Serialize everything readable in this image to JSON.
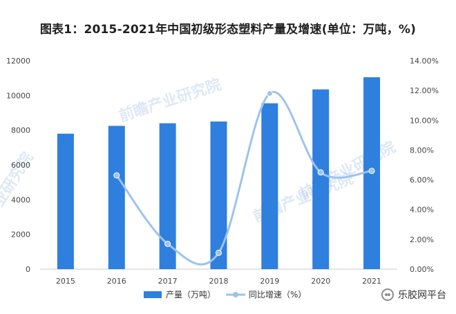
{
  "chart": {
    "title": "图表1：2015-2021年中国初级形态塑料产量及增速(单位：万吨，%)",
    "watermark_text": "前瞻产业研究院",
    "watermark_left_text": "产业研究院",
    "watermark_right_text": "前瞻产业研究院"
  },
  "source": {
    "badge_text": "乐胶网平台"
  },
  "chart_data": {
    "type": "bar",
    "categories": [
      "2015",
      "2016",
      "2017",
      "2018",
      "2019",
      "2020",
      "2021"
    ],
    "series": [
      {
        "name": "产量（万吨）",
        "type": "bar",
        "axis": "left",
        "values": [
          7800,
          8250,
          8400,
          8500,
          9550,
          10350,
          11050
        ],
        "color": "#2e7fde"
      },
      {
        "name": "同比增速（%）",
        "type": "line",
        "axis": "right",
        "values": [
          null,
          6.3,
          1.7,
          1.1,
          11.8,
          6.5,
          6.6
        ],
        "color": "#9cc3f0"
      }
    ],
    "y_left": {
      "min": 0,
      "max": 12000,
      "ticks": [
        0,
        2000,
        4000,
        6000,
        8000,
        10000,
        12000
      ]
    },
    "y_right": {
      "min": 0,
      "max": 14,
      "ticks": [
        0,
        2,
        4,
        6,
        8,
        10,
        12,
        14
      ],
      "tick_labels": [
        "0.00%",
        "2.00%",
        "4.00%",
        "6.00%",
        "8.00%",
        "10.00%",
        "12.00%",
        "14.00%"
      ]
    },
    "legend_position": "bottom-left",
    "grid": false
  }
}
